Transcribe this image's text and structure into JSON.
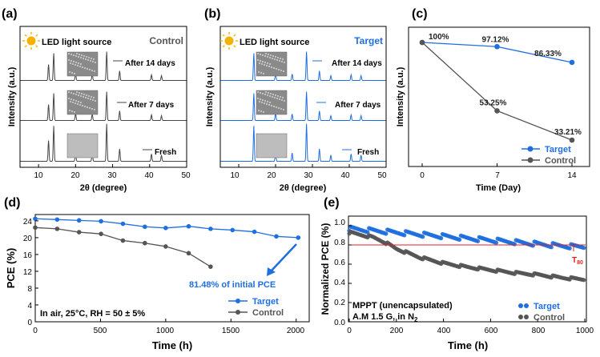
{
  "colors": {
    "target": "#1f6fe0",
    "control": "#555555",
    "axis": "#000000",
    "red_line": "#e02020",
    "led": "#f2b300"
  },
  "icons": {
    "led": "sun-icon"
  },
  "panels": {
    "a": {
      "label": "(a)",
      "xlabel": "2θ (degree)",
      "ylabel": "Intensity (a.u.)",
      "tag": "Control",
      "led_text": "LED light source",
      "traces": [
        "After 14 days",
        "After 7 days",
        "Fresh"
      ],
      "xticks": [
        "10",
        "20",
        "30",
        "40",
        "50"
      ]
    },
    "b": {
      "label": "(b)",
      "xlabel": "2θ (degree)",
      "ylabel": "Intensity (a.u.)",
      "tag": "Target",
      "led_text": "LED light source",
      "traces": [
        "After 14 days",
        "After 7 days",
        "Fresh"
      ],
      "xticks": [
        "10",
        "20",
        "30",
        "40",
        "50"
      ]
    },
    "c": {
      "label": "(c)",
      "xlabel": "Time (Day)",
      "ylabel": "Intensity (a.u.)",
      "xticks": [
        "0",
        "7",
        "14"
      ],
      "legend": [
        "Target",
        "Control"
      ]
    },
    "d": {
      "label": "(d)",
      "xlabel": "Time (h)",
      "ylabel": "PCE (%)",
      "annotation": "81.48% of initial PCE",
      "condition": "In air, 25°C, RH = 50 ± 5%",
      "legend": [
        "Target",
        "Control"
      ],
      "xticks": [
        "0",
        "500",
        "1000",
        "1500",
        "2000"
      ],
      "yticks": [
        "0",
        "4",
        "8",
        "12",
        "16",
        "20",
        "24"
      ]
    },
    "e": {
      "label": "(e)",
      "xlabel": "Time (h)",
      "ylabel": "Normalized PCE (%)",
      "note_line1": "MPPT (unencapsulated)",
      "note_line2": "A.M 1.5 G, in N",
      "note_line2_sub": "2",
      "t80_main": "T",
      "t80_sub": "80",
      "legend": [
        "Target",
        "Control"
      ],
      "xticks": [
        "0",
        "200",
        "400",
        "600",
        "800",
        "1000"
      ],
      "yticks": [
        "0.0",
        "0.2",
        "0.4",
        "0.6",
        "0.8",
        "1.0"
      ]
    }
  },
  "chart_data": [
    {
      "type": "line",
      "panel": "a",
      "title": "Control",
      "xlabel": "2θ (degree)",
      "ylabel": "Intensity (a.u.)",
      "xlim": [
        5,
        50
      ],
      "peaks_2theta": [
        12.7,
        14.1,
        20.0,
        24.5,
        28.4,
        31.9,
        40.5,
        43.2
      ],
      "series": [
        {
          "name": "After 14 days"
        },
        {
          "name": "After 7 days"
        },
        {
          "name": "Fresh"
        }
      ]
    },
    {
      "type": "line",
      "panel": "b",
      "title": "Target",
      "xlabel": "2θ (degree)",
      "ylabel": "Intensity (a.u.)",
      "xlim": [
        5,
        50
      ],
      "peaks_2theta": [
        14.1,
        20.0,
        24.5,
        28.4,
        31.9,
        35.0,
        40.5,
        43.2
      ],
      "series": [
        {
          "name": "After 14 days"
        },
        {
          "name": "After 7 days"
        },
        {
          "name": "Fresh"
        }
      ]
    },
    {
      "type": "line",
      "panel": "c",
      "xlabel": "Time (Day)",
      "ylabel": "Intensity (a.u.)",
      "x": [
        0,
        7,
        14
      ],
      "series": [
        {
          "name": "Target",
          "values": [
            100,
            97.12,
            86.33
          ],
          "labels": [
            "100%",
            "97.12%",
            "86.33%"
          ]
        },
        {
          "name": "Control",
          "values": [
            100,
            53.25,
            33.21
          ],
          "labels": [
            "",
            "53.25%",
            "33.21%"
          ]
        }
      ]
    },
    {
      "type": "line",
      "panel": "d",
      "xlabel": "Time (h)",
      "ylabel": "PCE (%)",
      "xlim": [
        0,
        2100
      ],
      "ylim": [
        0,
        25.5
      ],
      "series": [
        {
          "name": "Target",
          "x": [
            0,
            168,
            336,
            504,
            672,
            840,
            1000,
            1176,
            1344,
            1512,
            1680,
            1848,
            2016
          ],
          "values": [
            24.5,
            24.3,
            24.1,
            23.9,
            23.3,
            22.6,
            22.3,
            22.7,
            22.1,
            21.8,
            21.4,
            20.3,
            20.0
          ]
        },
        {
          "name": "Control",
          "x": [
            0,
            168,
            336,
            504,
            672,
            840,
            1000,
            1176,
            1344
          ],
          "values": [
            22.4,
            22.1,
            21.3,
            20.9,
            19.3,
            18.7,
            17.9,
            16.3,
            13.1
          ]
        }
      ]
    },
    {
      "type": "scatter",
      "panel": "e",
      "xlabel": "Time (h)",
      "ylabel": "Normalized PCE (%)",
      "xlim": [
        0,
        1000
      ],
      "ylim": [
        0,
        1.05
      ],
      "reference_line": 0.8,
      "series": [
        {
          "name": "Target",
          "x": [
            0,
            100,
            200,
            300,
            400,
            500,
            600,
            700,
            800,
            900,
            1000
          ],
          "values": [
            0.97,
            0.95,
            0.93,
            0.91,
            0.89,
            0.87,
            0.85,
            0.83,
            0.81,
            0.79,
            0.78
          ]
        },
        {
          "name": "Control",
          "x": [
            0,
            100,
            150,
            200,
            300,
            400,
            500,
            600,
            700,
            800,
            900,
            1000
          ],
          "values": [
            0.93,
            0.88,
            0.83,
            0.76,
            0.67,
            0.61,
            0.57,
            0.54,
            0.51,
            0.49,
            0.46,
            0.44
          ]
        }
      ]
    }
  ]
}
